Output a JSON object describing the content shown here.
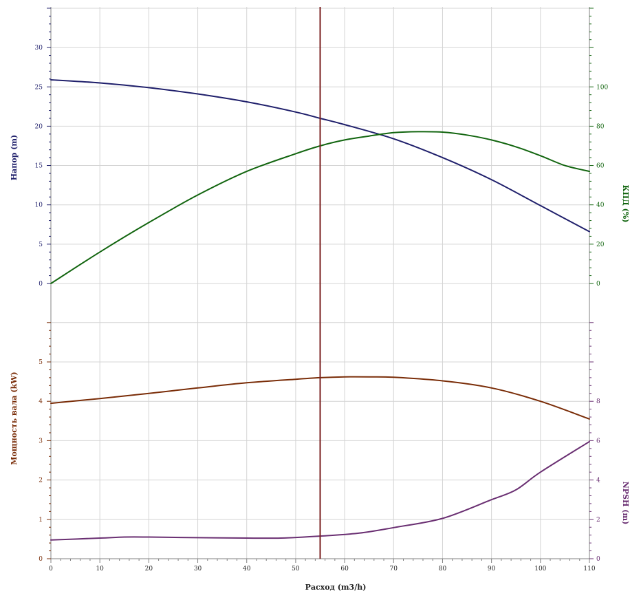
{
  "chart_data": {
    "type": "line",
    "x_axis": {
      "label": "Расход (m3/h)",
      "range": [
        0,
        110
      ],
      "ticks": [
        "0",
        "10",
        "20",
        "30",
        "40",
        "50",
        "60",
        "70",
        "80",
        "90",
        "100",
        "110"
      ]
    },
    "duty_point_x": 55,
    "grid": true,
    "colors": {
      "head": "#1f1f6b",
      "efficiency": "#12650f",
      "power": "#7a2d08",
      "npsh": "#6a2f72",
      "duty_line": "#7a1f1f",
      "grid": "#d4d4d4",
      "axis": "#808080"
    },
    "top_panel": {
      "left_axis": {
        "label": "Напор (m)",
        "range": [
          0,
          35
        ],
        "ticks": [
          "0",
          "5",
          "10",
          "15",
          "20",
          "25",
          "30"
        ]
      },
      "right_axis": {
        "label": "КПД (%)",
        "range": [
          0,
          140
        ],
        "ticks": [
          "0",
          "20",
          "40",
          "60",
          "80",
          "100"
        ]
      },
      "series": [
        {
          "id": "head",
          "axis": "left",
          "x": [
            0,
            10,
            20,
            30,
            40,
            50,
            55,
            60,
            70,
            80,
            90,
            100,
            110
          ],
          "y": [
            25.9,
            25.5,
            24.9,
            24.1,
            23.1,
            21.8,
            21.0,
            20.2,
            18.4,
            16.0,
            13.2,
            9.9,
            6.6
          ]
        },
        {
          "id": "efficiency",
          "axis": "right",
          "x": [
            0,
            10,
            20,
            30,
            40,
            50,
            55,
            60,
            65,
            70,
            75,
            80,
            85,
            90,
            95,
            100,
            105,
            110
          ],
          "y": [
            0,
            16,
            31,
            45,
            57,
            66,
            70,
            73,
            75,
            76.7,
            77.2,
            77,
            75.5,
            73,
            69.5,
            65,
            60,
            57
          ]
        }
      ]
    },
    "bottom_panel": {
      "left_axis": {
        "label": "Мощность вала (kW)",
        "range": [
          0,
          6
        ],
        "ticks": [
          "0",
          "1",
          "2",
          "3",
          "4",
          "5"
        ]
      },
      "right_axis": {
        "label": "NPSH (m)",
        "range": [
          0,
          12
        ],
        "ticks": [
          "0",
          "2",
          "4",
          "6",
          "8"
        ]
      },
      "series": [
        {
          "id": "power",
          "axis": "left",
          "x": [
            0,
            10,
            20,
            30,
            40,
            50,
            55,
            60,
            65,
            70,
            80,
            90,
            100,
            110
          ],
          "y": [
            3.95,
            4.07,
            4.2,
            4.34,
            4.47,
            4.56,
            4.6,
            4.62,
            4.62,
            4.61,
            4.52,
            4.34,
            4.0,
            3.55
          ]
        },
        {
          "id": "npsh",
          "axis": "right",
          "x": [
            0,
            10,
            15,
            20,
            30,
            40,
            47,
            55,
            63,
            70,
            80,
            90,
            95,
            100,
            110
          ],
          "y": [
            0.95,
            1.05,
            1.1,
            1.1,
            1.07,
            1.05,
            1.05,
            1.15,
            1.3,
            1.58,
            2.05,
            3.0,
            3.5,
            4.4,
            5.95
          ]
        }
      ]
    }
  }
}
